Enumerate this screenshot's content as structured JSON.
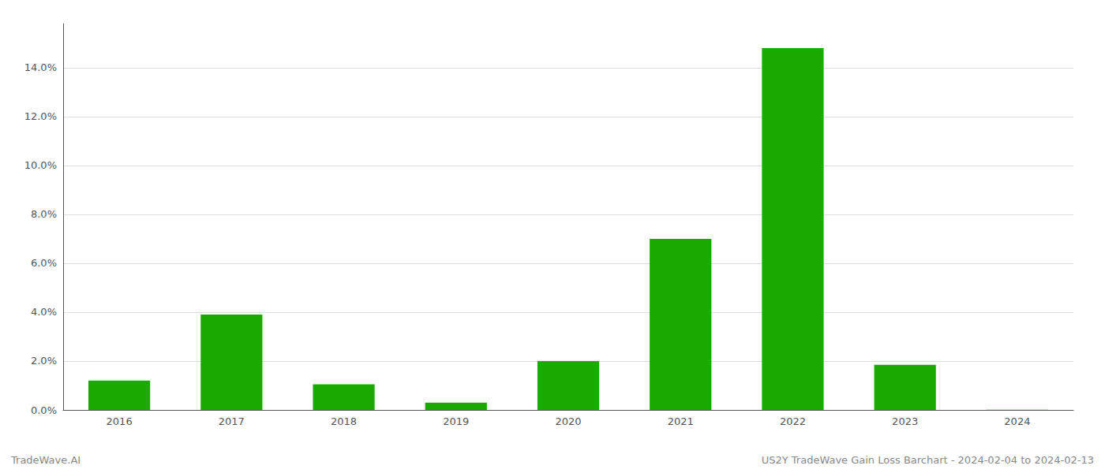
{
  "chart_data": {
    "type": "bar",
    "categories": [
      "2016",
      "2017",
      "2018",
      "2019",
      "2020",
      "2021",
      "2022",
      "2023",
      "2024"
    ],
    "values": [
      0.012,
      0.039,
      0.0105,
      0.003,
      0.02,
      0.07,
      0.148,
      0.0185,
      0.0001
    ],
    "color": "#1aab00",
    "ylim": [
      0,
      0.158
    ],
    "yticks": [
      {
        "value": 0.0,
        "label": "0.0%"
      },
      {
        "value": 0.02,
        "label": "2.0%"
      },
      {
        "value": 0.04,
        "label": "4.0%"
      },
      {
        "value": 0.06,
        "label": "6.0%"
      },
      {
        "value": 0.08,
        "label": "8.0%"
      },
      {
        "value": 0.1,
        "label": "10.0%"
      },
      {
        "value": 0.12,
        "label": "12.0%"
      },
      {
        "value": 0.14,
        "label": "14.0%"
      }
    ],
    "grid": true,
    "annotations": [
      "TradeWave.AI",
      "US2Y TradeWave Gain Loss Barchart - 2024-02-04 to 2024-02-13"
    ]
  }
}
